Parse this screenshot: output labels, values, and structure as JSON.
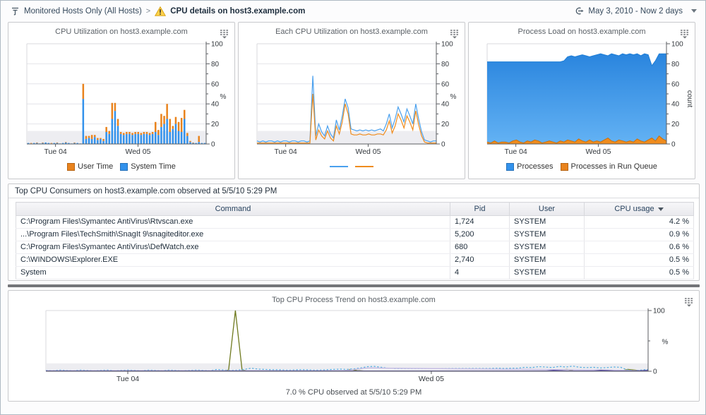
{
  "topbar": {
    "breadcrumb": {
      "root": "Monitored Hosts Only (All Hosts)",
      "separator": ">",
      "current": "CPU details on host3.example.com"
    },
    "time_range": {
      "label": "May 3, 2010 - Now 2 days"
    }
  },
  "table": {
    "title": "Top CPU Consumers on host3.example.com observed at 5/5/10 5:29 PM",
    "columns": [
      {
        "key": "command",
        "label": "Command",
        "align": "left"
      },
      {
        "key": "pid",
        "label": "Pid",
        "align": "left"
      },
      {
        "key": "user",
        "label": "User",
        "align": "left"
      },
      {
        "key": "cpu-usage",
        "label": "CPU usage",
        "align": "right",
        "sort": "desc"
      }
    ],
    "rows": [
      [
        "C:\\Program Files\\Symantec AntiVirus\\Rtvscan.exe",
        "1,724",
        "SYSTEM",
        "4.2 %"
      ],
      [
        "...\\Program Files\\TechSmith\\SnagIt 9\\snagiteditor.exe",
        "5,200",
        "SYSTEM",
        "0.9 %"
      ],
      [
        "C:\\Program Files\\Symantec AntiVirus\\DefWatch.exe",
        "680",
        "SYSTEM",
        "0.6 %"
      ],
      [
        "C:\\WINDOWS\\Explorer.EXE",
        "2,740",
        "SYSTEM",
        "0.5 %"
      ],
      [
        "System",
        "4",
        "SYSTEM",
        "0.5 %"
      ]
    ]
  },
  "chart_data": [
    {
      "type": "bar",
      "title": "CPU Utilization on host3.example.com",
      "ylabel": "%",
      "ylim": [
        0,
        100
      ],
      "band": [
        0,
        13
      ],
      "grid": [
        20,
        40,
        60,
        80,
        100
      ],
      "yticks": [
        {
          "v": 0,
          "label": "0"
        },
        {
          "v": 10
        },
        {
          "v": 20,
          "label": "20"
        },
        {
          "v": 30
        },
        {
          "v": 40,
          "label": "40"
        },
        {
          "v": 50
        },
        {
          "v": 60,
          "label": "60"
        },
        {
          "v": 70
        },
        {
          "v": 80,
          "label": "80"
        },
        {
          "v": 90
        },
        {
          "v": 100,
          "label": "100"
        }
      ],
      "x_ticks": [
        {
          "pos": 0.16,
          "label": "Tue 04"
        },
        {
          "pos": 0.62,
          "label": "Wed 05"
        }
      ],
      "legend": [
        {
          "label": "User Time",
          "color": "#e9831d"
        },
        {
          "label": "System Time",
          "color": "#3392ec"
        }
      ],
      "stacked": true,
      "series": [
        {
          "name": "System Time",
          "color": "#3392ec",
          "values": [
            1,
            0.5,
            1,
            1,
            0.5,
            1,
            1.5,
            1,
            0.5,
            1,
            1,
            0.5,
            1,
            1.5,
            1,
            0.5,
            1,
            1,
            0.5,
            45,
            5,
            6,
            5,
            7,
            4,
            5,
            3,
            12,
            10,
            25,
            33,
            18,
            10,
            9,
            10,
            10,
            9,
            10,
            10,
            9,
            10,
            10,
            9,
            10,
            12,
            9,
            17,
            20,
            25,
            12,
            15,
            20,
            13,
            12,
            25,
            8,
            2,
            1,
            1,
            2,
            1,
            1
          ]
        },
        {
          "name": "User Time",
          "color": "#e9831d",
          "values": [
            0,
            0.5,
            0,
            0.5,
            0,
            0.5,
            0,
            0,
            0.5,
            0,
            0.5,
            0,
            0,
            0.5,
            0,
            0,
            0.5,
            0,
            0,
            15,
            3,
            2,
            4,
            2,
            2,
            1,
            2,
            5,
            3,
            16,
            8,
            7,
            2,
            2,
            2,
            2,
            2,
            2,
            2,
            2,
            2,
            2,
            2,
            2,
            10,
            5,
            13,
            8,
            15,
            13,
            3,
            7,
            9,
            14,
            9,
            3,
            1,
            0.5,
            0,
            6,
            0,
            0
          ]
        }
      ]
    },
    {
      "type": "line",
      "title": "Each CPU Utilization on host3.example.com",
      "ylabel": "%",
      "ylim": [
        0,
        100
      ],
      "band": [
        0,
        13
      ],
      "grid": [
        20,
        40,
        60,
        80,
        100
      ],
      "yticks": [
        {
          "v": 0,
          "label": "0"
        },
        {
          "v": 10
        },
        {
          "v": 20,
          "label": "20"
        },
        {
          "v": 30
        },
        {
          "v": 40,
          "label": "40"
        },
        {
          "v": 50
        },
        {
          "v": 60,
          "label": "60"
        },
        {
          "v": 70
        },
        {
          "v": 80,
          "label": "80"
        },
        {
          "v": 90
        },
        {
          "v": 100,
          "label": "100"
        }
      ],
      "x_ticks": [
        {
          "pos": 0.16,
          "label": "Tue 04"
        },
        {
          "pos": 0.62,
          "label": "Wed 05"
        }
      ],
      "legend": [
        {
          "color": "#4aa0ee",
          "line": true
        },
        {
          "color": "#ef8c1e",
          "line": true
        }
      ],
      "series": [
        {
          "name": "cpu0",
          "color": "#4aa0ee",
          "values": [
            3,
            2,
            3,
            2,
            3,
            3,
            2,
            3,
            2,
            3,
            3,
            2,
            3,
            3,
            2,
            3,
            3,
            2,
            3,
            68,
            8,
            20,
            12,
            8,
            18,
            10,
            6,
            24,
            14,
            28,
            45,
            36,
            15,
            14,
            13,
            14,
            13,
            14,
            13,
            14,
            13,
            14,
            15,
            13,
            20,
            30,
            16,
            25,
            37,
            30,
            22,
            35,
            28,
            20,
            40,
            25,
            12,
            4,
            3,
            2,
            3,
            3
          ]
        },
        {
          "name": "cpu1",
          "color": "#ef8c1e",
          "values": [
            1,
            1,
            1,
            1,
            1,
            1,
            1,
            1,
            1,
            1,
            1,
            1,
            1,
            1,
            1,
            1,
            1,
            1,
            1,
            50,
            4,
            14,
            8,
            5,
            13,
            6,
            3,
            18,
            10,
            22,
            40,
            30,
            10,
            9,
            9,
            10,
            9,
            9,
            10,
            9,
            9,
            10,
            10,
            9,
            14,
            23,
            11,
            18,
            30,
            24,
            16,
            28,
            22,
            14,
            33,
            19,
            8,
            2,
            1,
            1,
            1,
            1
          ]
        }
      ]
    },
    {
      "type": "area",
      "title": "Process Load on host3.example.com",
      "ylabel": "count",
      "ylabel_rotated": true,
      "ylim": [
        0,
        100
      ],
      "band": [
        0,
        13
      ],
      "grid": [
        20,
        40,
        60,
        80,
        100
      ],
      "yticks": [
        {
          "v": 0,
          "label": "0"
        },
        {
          "v": 10
        },
        {
          "v": 20,
          "label": "20"
        },
        {
          "v": 30
        },
        {
          "v": 40,
          "label": "40"
        },
        {
          "v": 50
        },
        {
          "v": 60,
          "label": "60"
        },
        {
          "v": 70
        },
        {
          "v": 80,
          "label": "80"
        },
        {
          "v": 90
        },
        {
          "v": 100,
          "label": "100"
        }
      ],
      "x_ticks": [
        {
          "pos": 0.16,
          "label": "Tue 04"
        },
        {
          "pos": 0.62,
          "label": "Wed 05"
        }
      ],
      "legend": [
        {
          "label": "Processes",
          "color": "#3392ec"
        },
        {
          "label": "Processes in Run Queue",
          "color": "#e9831d"
        }
      ],
      "series": [
        {
          "name": "Processes",
          "color": "#1f7ed6",
          "gradient": [
            "#2a85de",
            "#63b2f4"
          ],
          "values": [
            82,
            82,
            82,
            82,
            82,
            82,
            82,
            82,
            82,
            82,
            82,
            82,
            82,
            82,
            82,
            82,
            82,
            82,
            82,
            82,
            82,
            83,
            87,
            88,
            87,
            88,
            89,
            88,
            87,
            88,
            89,
            90,
            89,
            88,
            90,
            89,
            88,
            90,
            89,
            90,
            89,
            90,
            88,
            90,
            89,
            78,
            83,
            90,
            90,
            90
          ]
        },
        {
          "name": "Processes in Run Queue",
          "color": "#ef8c1e",
          "stroke": "#c9700e",
          "values": [
            2,
            1,
            3,
            1,
            2,
            2,
            1,
            3,
            4,
            2,
            1,
            3,
            2,
            4,
            3,
            1,
            2,
            3,
            2,
            1,
            3,
            2,
            4,
            3,
            2,
            5,
            3,
            2,
            4,
            2,
            3,
            2,
            4,
            6,
            3,
            2,
            4,
            3,
            2,
            3,
            2,
            5,
            3,
            2,
            4,
            6,
            3,
            8,
            5,
            3
          ]
        }
      ]
    },
    {
      "type": "line",
      "title": "Top CPU Process Trend on host3.example.com",
      "caption": "7.0 % CPU observed at 5/5/10 5:29 PM",
      "ylabel": "%",
      "ylim": [
        0,
        100
      ],
      "band": [
        0,
        13
      ],
      "grid": [],
      "yticks": [
        {
          "v": 0,
          "label": "0"
        },
        {
          "v": 50
        },
        {
          "v": 100,
          "label": "100"
        }
      ],
      "x_ticks": [
        {
          "pos": 0.136,
          "label": "Tue 04"
        },
        {
          "pos": 0.64,
          "label": "Wed 05"
        }
      ],
      "legend": [],
      "series": [
        {
          "name": "process-trend-olive",
          "color": "#6f7a1f",
          "width": 1.3,
          "values": [
            0.5,
            0.5,
            0.5,
            0.5,
            0.5,
            0.5,
            0.5,
            0.5,
            0.5,
            0.5,
            0.5,
            0.5,
            0.5,
            0.5,
            0.5,
            0.5,
            0.5,
            0.5,
            0.5,
            0.5,
            0.5,
            0.5,
            0.5,
            0.5,
            0.5,
            0.5,
            0.5,
            2,
            100,
            2,
            0.5,
            0.5,
            0.5,
            0.5,
            0.5,
            0.5,
            0.5,
            0.5,
            0.5,
            0.5,
            0.5,
            0.5,
            0.5,
            0.5,
            0.5,
            3,
            1,
            0.5,
            0.5,
            0.5,
            0.5,
            0.5,
            0.5,
            0.5,
            0.5,
            0.5,
            0.5,
            0.5,
            0.5,
            0.5,
            0.5,
            0.5,
            0.5,
            0.5,
            0.5,
            0.5,
            0.5,
            0.5,
            0.5,
            0.5,
            0.5,
            0.5,
            0.5,
            0.5,
            0.5,
            0.5,
            2,
            3,
            0.5,
            0.5,
            0.5,
            0.5,
            2,
            0.5,
            0.5,
            0.5,
            3,
            2,
            0.5,
            1
          ]
        },
        {
          "name": "process-trend-blue",
          "color": "#56aee0",
          "dash": true,
          "values": [
            1.5,
            1,
            2,
            1.5,
            1,
            2,
            1.5,
            1,
            1.5,
            2,
            1,
            1.5,
            2,
            1.5,
            1,
            2,
            1.5,
            1,
            2,
            1.5,
            1,
            1.5,
            2,
            1.5,
            1,
            3,
            2,
            1.5,
            2,
            3,
            5,
            3.5,
            3,
            2.5,
            2.5,
            2,
            2,
            2.5,
            2.5,
            2,
            2,
            2.5,
            3,
            3.5,
            3,
            4,
            5.5,
            7.5,
            8,
            6.5,
            5,
            4.5,
            4.5,
            4.5,
            4.5,
            4.5,
            4.5,
            4.5,
            4.5,
            4.5,
            4.5,
            4.5,
            4.5,
            4.5,
            4.5,
            4.5,
            5,
            4.5,
            5,
            5,
            6.5,
            6,
            7.5,
            7,
            6,
            8,
            7,
            8.5,
            6.5,
            6,
            6.5,
            5.5,
            6,
            7,
            6.5,
            2,
            1,
            2,
            3
          ]
        },
        {
          "name": "process-trend-lavender",
          "color": "#c9c0e6",
          "width": 1.5,
          "values": [
            0.8,
            0.8,
            0.8,
            0.8,
            0.8,
            0.8,
            0.8,
            0.8,
            0.8,
            0.8,
            0.8,
            0.8,
            0.8,
            0.8,
            0.8,
            0.8,
            0.8,
            0.8,
            0.8,
            0.8,
            0.8,
            0.8,
            0.8,
            0.8,
            0.8,
            0.8,
            0.8,
            0.8,
            0.8,
            0.8,
            0.8,
            0.8,
            0.8,
            0.8,
            0.8,
            0.8,
            0.8,
            0.8,
            0.8,
            0.8,
            0.8,
            0.8,
            0.8,
            0.8,
            1,
            2,
            3.5,
            5,
            5.5,
            5.3,
            5.1,
            5,
            4.9,
            4.8,
            4.7,
            4.6,
            4.5,
            4.4,
            4.3,
            4.2,
            4.1,
            4,
            3.9,
            3.8,
            3.7,
            3.6,
            3.5,
            3.4,
            3.3,
            3.2,
            3.1,
            3,
            2.9,
            2.8,
            2.7,
            2.6,
            2.5,
            2.4,
            2.3,
            2.2,
            2.1,
            2,
            1.9,
            1.8,
            1.7,
            1.6,
            1.2,
            1,
            0.8,
            0.8
          ]
        },
        {
          "name": "process-trend-purple",
          "color": "#5c50a5",
          "width": 1.3,
          "values": [
            0.5,
            0.5,
            0.5,
            0.5,
            0.5,
            0.5,
            0.5,
            0.5,
            0.5,
            0.5,
            0.5,
            0.5,
            0.5,
            0.5,
            0.5,
            0.5,
            0.5,
            0.5,
            0.5,
            0.5,
            0.5,
            0.5,
            0.5,
            0.5,
            0.5,
            0.5,
            0.5,
            0.5,
            0.5,
            0.5,
            0.5,
            0.5,
            0.5,
            0.5,
            0.5,
            0.5,
            0.5,
            0.5,
            0.5,
            0.5,
            0.5,
            0.5,
            0.5,
            0.5,
            0.5,
            0.5,
            0.5,
            0.5,
            0.5,
            0.5,
            0.5,
            0.5,
            0.5,
            0.5,
            0.5,
            0.5,
            0.5,
            0.5,
            0.5,
            0.5,
            0.5,
            0.5,
            0.5,
            0.5,
            0.5,
            0.5,
            0.5,
            0.5,
            0.5,
            0.5,
            0.5,
            0.5,
            0.5,
            0.5,
            0.5,
            1.5,
            1,
            0.5,
            0.5,
            0.5,
            0.5,
            0.5,
            1.5,
            1.2,
            0.5,
            0.5,
            0.5,
            0.5,
            1,
            1.5
          ]
        }
      ]
    }
  ]
}
